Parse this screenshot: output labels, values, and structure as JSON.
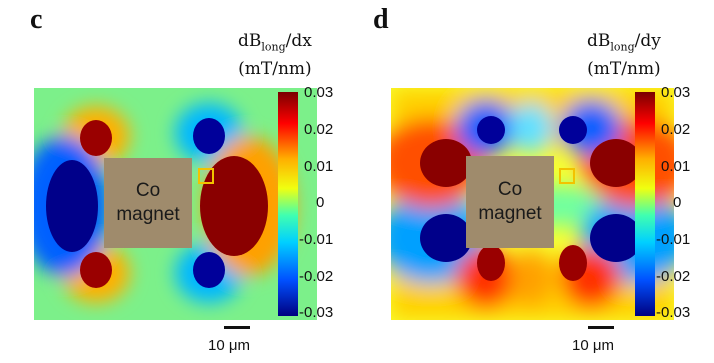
{
  "panels": [
    {
      "letter": "c",
      "cb_title_main": "dB",
      "cb_title_sub": "long",
      "cb_title_rest": "/dx",
      "cb_unit": "(mT/nm)",
      "magnet_label_1": "Co",
      "magnet_label_2": "magnet",
      "scale_label": "10 μm"
    },
    {
      "letter": "d",
      "cb_title_main": "dB",
      "cb_title_sub": "long",
      "cb_title_rest": "/dy",
      "cb_unit": "(mT/nm)",
      "magnet_label_1": "Co",
      "magnet_label_2": "magnet",
      "scale_label": "10 μm"
    }
  ],
  "colorbar_ticks": [
    "0.03",
    "0.02",
    "0.01",
    "0",
    "-0.01",
    "-0.02",
    "-0.03"
  ],
  "colors": {
    "magnet": "#9f8b6c",
    "marker": "#f2c300",
    "max": "#7a0000",
    "min": "#000080"
  }
}
